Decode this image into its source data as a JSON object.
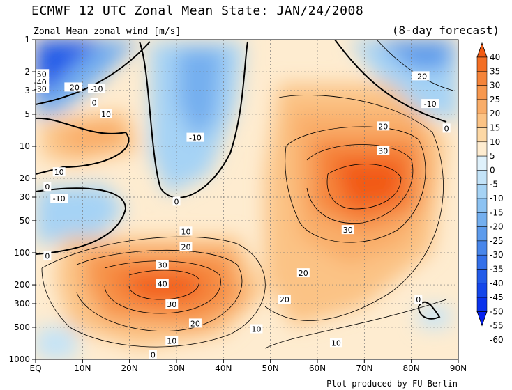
{
  "header": {
    "title": "ECMWF 12 UTC Zonal Mean State: JAN/24/2008",
    "subtitle": "Zonal Mean zonal wind [m/s]",
    "forecast": "(8-day forecast)",
    "credit": "Plot produced by FU-Berlin"
  },
  "chart_data": {
    "type": "heatmap",
    "x_ticks": [
      "EQ",
      "10N",
      "20N",
      "30N",
      "40N",
      "50N",
      "60N",
      "70N",
      "80N",
      "90N"
    ],
    "x_values": [
      0,
      10,
      20,
      30,
      40,
      50,
      60,
      70,
      80,
      90
    ],
    "y_ticks": [
      "1",
      "2",
      "3",
      "5",
      "10",
      "20",
      "30",
      "50",
      "100",
      "200",
      "300",
      "500",
      "1000"
    ],
    "y_values": [
      1,
      2,
      3,
      5,
      10,
      20,
      30,
      50,
      100,
      200,
      300,
      500,
      1000
    ],
    "y_scale": "log-reversed",
    "colorbar_levels": [
      40,
      35,
      30,
      25,
      20,
      15,
      10,
      5,
      0,
      -5,
      -10,
      -15,
      -20,
      -25,
      -30,
      -35,
      -40,
      -45,
      -50,
      -55,
      -60
    ],
    "colorbar_colors": [
      "#f25a12",
      "#f36f25",
      "#f5843a",
      "#f7984f",
      "#f9ad69",
      "#fbc385",
      "#fdd8a5",
      "#feecd0",
      "#dff1fb",
      "#c3e3f8",
      "#a6d3f5",
      "#8cc2f2",
      "#74afef",
      "#5d9bec",
      "#4886ea",
      "#3470e9",
      "#225be9",
      "#1446ea",
      "#0a32ec",
      "#0520ef"
    ],
    "contour_labels": [
      {
        "text": "-50",
        "lat": 1,
        "p": 2.1
      },
      {
        "text": "-40",
        "lat": 1,
        "p": 2.5
      },
      {
        "text": "-30",
        "lat": 1,
        "p": 2.9
      },
      {
        "text": "-20",
        "lat": 8,
        "p": 2.8
      },
      {
        "text": "-10",
        "lat": 13,
        "p": 2.9
      },
      {
        "text": "0",
        "lat": 12.5,
        "p": 3.9
      },
      {
        "text": "10",
        "lat": 15,
        "p": 5.0
      },
      {
        "text": "10",
        "lat": 5,
        "p": 17.5
      },
      {
        "text": "0",
        "lat": 2.5,
        "p": 24
      },
      {
        "text": "-10",
        "lat": 5,
        "p": 31
      },
      {
        "text": "-10",
        "lat": 34,
        "p": 8.3
      },
      {
        "text": "0",
        "lat": 30,
        "p": 33
      },
      {
        "text": "-20",
        "lat": 82,
        "p": 2.2
      },
      {
        "text": "-10",
        "lat": 84,
        "p": 4.0
      },
      {
        "text": "0",
        "lat": 87.5,
        "p": 6.8
      },
      {
        "text": "20",
        "lat": 74,
        "p": 6.5
      },
      {
        "text": "30",
        "lat": 74,
        "p": 11
      },
      {
        "text": "30",
        "lat": 66.5,
        "p": 61
      },
      {
        "text": "10",
        "lat": 32,
        "p": 63
      },
      {
        "text": "20",
        "lat": 32,
        "p": 88
      },
      {
        "text": "30",
        "lat": 27,
        "p": 130
      },
      {
        "text": "40",
        "lat": 27,
        "p": 195
      },
      {
        "text": "30",
        "lat": 29,
        "p": 305
      },
      {
        "text": "20",
        "lat": 34,
        "p": 460
      },
      {
        "text": "10",
        "lat": 29,
        "p": 670
      },
      {
        "text": "0",
        "lat": 25,
        "p": 910
      },
      {
        "text": "20",
        "lat": 57,
        "p": 155
      },
      {
        "text": "20",
        "lat": 53,
        "p": 275
      },
      {
        "text": "10",
        "lat": 47,
        "p": 520
      },
      {
        "text": "10",
        "lat": 64,
        "p": 700
      },
      {
        "text": "0",
        "lat": 2.5,
        "p": 107
      },
      {
        "text": "0",
        "lat": 81.5,
        "p": 275
      }
    ]
  }
}
